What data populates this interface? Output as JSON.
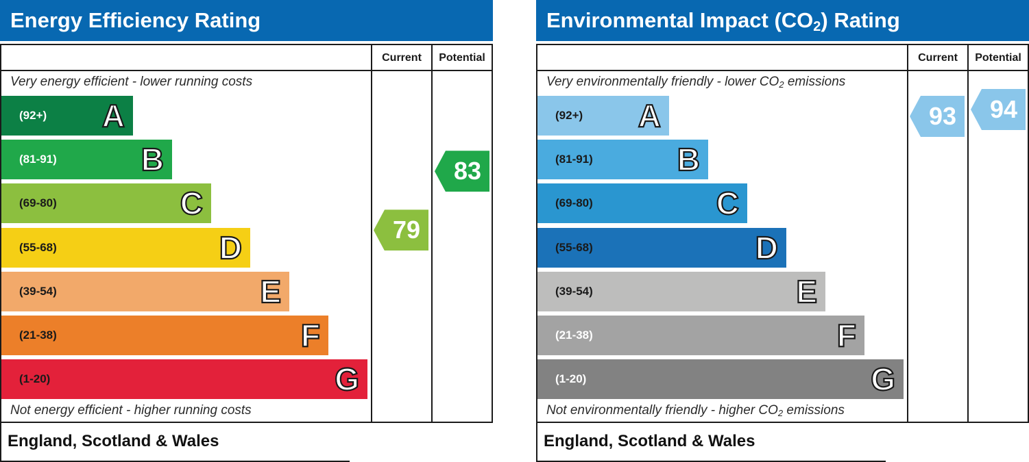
{
  "chart_data": [
    {
      "type": "bar",
      "title": "Energy Efficiency Rating",
      "top_note": "Very energy efficient - lower running costs",
      "bottom_note": "Not energy efficient - higher running costs",
      "footer": "England, Scotland & Wales",
      "columns": [
        "Current",
        "Potential"
      ],
      "bands": [
        {
          "letter": "A",
          "range": "(92+)",
          "color": "#0c8045",
          "text_color": "#ffffff"
        },
        {
          "letter": "B",
          "range": "(81-91)",
          "color": "#20a84a",
          "text_color": "#ffffff"
        },
        {
          "letter": "C",
          "range": "(69-80)",
          "color": "#8cbf3f",
          "text_color": "#1a1a1a"
        },
        {
          "letter": "D",
          "range": "(55-68)",
          "color": "#f5cf15",
          "text_color": "#1a1a1a"
        },
        {
          "letter": "E",
          "range": "(39-54)",
          "color": "#f2a96a",
          "text_color": "#1a1a1a"
        },
        {
          "letter": "F",
          "range": "(21-38)",
          "color": "#ec7f29",
          "text_color": "#1a1a1a"
        },
        {
          "letter": "G",
          "range": "(1-20)",
          "color": "#e3213a",
          "text_color": "#1a1a1a"
        }
      ],
      "current": {
        "value": 79,
        "band": "C",
        "color": "#8cbf3f"
      },
      "potential": {
        "value": 83,
        "band": "B",
        "color": "#20a84a"
      }
    },
    {
      "type": "bar",
      "title": "Environmental Impact (CO2) Rating",
      "title_parts": [
        "Environmental Impact (CO",
        "2",
        ") Rating"
      ],
      "top_note": "Very environmentally friendly - lower CO2 emissions",
      "top_note_parts": [
        "Very environmentally friendly - lower CO",
        "2",
        " emissions"
      ],
      "bottom_note": "Not environmentally friendly - higher CO2 emissions",
      "bottom_note_parts": [
        "Not environmentally friendly - higher CO",
        "2",
        " emissions"
      ],
      "footer": "England, Scotland & Wales",
      "columns": [
        "Current",
        "Potential"
      ],
      "bands": [
        {
          "letter": "A",
          "range": "(92+)",
          "color": "#8ac6ea",
          "text_color": "#1a1a1a"
        },
        {
          "letter": "B",
          "range": "(81-91)",
          "color": "#4aabdf",
          "text_color": "#1a1a1a"
        },
        {
          "letter": "C",
          "range": "(69-80)",
          "color": "#2a96d0",
          "text_color": "#1a1a1a"
        },
        {
          "letter": "D",
          "range": "(55-68)",
          "color": "#1b72b8",
          "text_color": "#1a1a1a"
        },
        {
          "letter": "E",
          "range": "(39-54)",
          "color": "#bdbdbc",
          "text_color": "#1a1a1a"
        },
        {
          "letter": "F",
          "range": "(21-38)",
          "color": "#a3a3a3",
          "text_color": "#ffffff"
        },
        {
          "letter": "G",
          "range": "(1-20)",
          "color": "#828282",
          "text_color": "#ffffff"
        }
      ],
      "current": {
        "value": 93,
        "band": "A",
        "color": "#8ac6ea"
      },
      "potential": {
        "value": 94,
        "band": "A",
        "color": "#8ac6ea"
      }
    }
  ]
}
